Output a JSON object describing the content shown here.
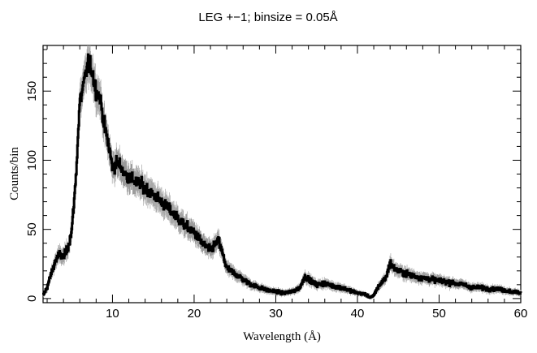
{
  "chart_data": {
    "type": "line",
    "title": "LEG +−1; binsize = 0.05Å",
    "xlabel": "Wavelength (Å)",
    "ylabel": "Counts/bin",
    "xlim": [
      1.5,
      60
    ],
    "ylim": [
      -3,
      183
    ],
    "xticks": [
      10,
      20,
      30,
      40,
      50,
      60
    ],
    "yticks": [
      0,
      50,
      100,
      150
    ],
    "xtick_labels": [
      "10",
      "20",
      "30",
      "40",
      "50",
      "60"
    ],
    "ytick_labels": [
      "0",
      "50",
      "100",
      "150"
    ],
    "grid": false,
    "legend": "none",
    "series": [
      {
        "style": "step-with-error-bars",
        "binsize": 0.05,
        "x": [
          1.5,
          2,
          2.5,
          3,
          3.5,
          4,
          4.5,
          5,
          5.5,
          6,
          6.5,
          7,
          7.5,
          8,
          8.5,
          9,
          9.5,
          10,
          10.5,
          11,
          11.5,
          12,
          12.5,
          13,
          13.5,
          14,
          14.5,
          15,
          16,
          17,
          18,
          19,
          20,
          21,
          22,
          23,
          23.5,
          24,
          24.5,
          25,
          26,
          27,
          28,
          29,
          30,
          31,
          32,
          33,
          33.5,
          34,
          34.5,
          35,
          36,
          37,
          38,
          39,
          40,
          41,
          41.5,
          42,
          42.5,
          43,
          43.5,
          44,
          44.5,
          45,
          46,
          47,
          48,
          49,
          50,
          51,
          52,
          53,
          54,
          55,
          56,
          57,
          58,
          59,
          60
        ],
        "y": [
          2,
          8,
          18,
          27,
          32,
          30,
          36,
          48,
          85,
          142,
          155,
          170,
          165,
          150,
          145,
          125,
          112,
          95,
          98,
          96,
          90,
          88,
          86,
          84,
          82,
          80,
          78,
          75,
          70,
          64,
          58,
          52,
          48,
          40,
          35,
          42,
          32,
          22,
          20,
          18,
          14,
          10,
          8,
          6,
          5,
          4,
          5,
          8,
          16,
          14,
          12,
          10,
          11,
          9,
          8,
          6,
          4,
          3,
          1,
          2,
          8,
          12,
          15,
          26,
          22,
          20,
          18,
          16,
          15,
          14,
          13,
          12,
          11,
          10,
          8,
          8,
          7,
          7,
          6,
          5,
          4
        ]
      }
    ]
  }
}
